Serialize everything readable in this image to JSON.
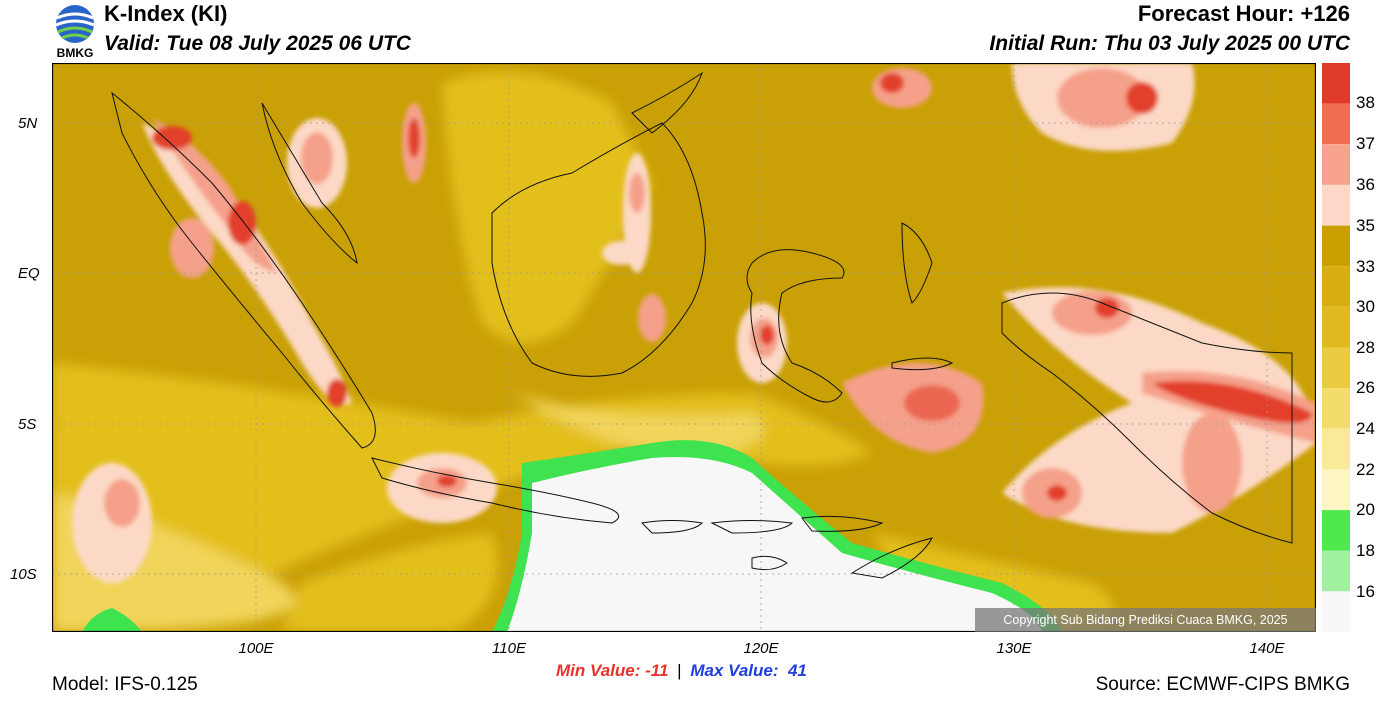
{
  "header": {
    "title": "K-Index (KI)",
    "valid": "Valid: Tue 08 July 2025 06 UTC",
    "forecast_hour": "Forecast Hour: +126",
    "initial_run": "Initial Run: Thu 03 July 2025 00 UTC"
  },
  "logo": {
    "text": "BMKG",
    "icon": "bmkg-logo-icon"
  },
  "axes": {
    "lat_ticks": [
      "5N",
      "EQ",
      "5S",
      "10S"
    ],
    "lon_ticks": [
      "100E",
      "110E",
      "120E",
      "130E",
      "140E"
    ]
  },
  "colorbar": {
    "labels": [
      "38",
      "37",
      "36",
      "35",
      "33",
      "30",
      "28",
      "26",
      "24",
      "22",
      "20",
      "18",
      "16"
    ],
    "colors": [
      "#e03a28",
      "#f06c52",
      "#f8a290",
      "#fdd8c8",
      "#caa000",
      "#d7ad10",
      "#e0bb20",
      "#ebcb40",
      "#f3dc6c",
      "#f8ea98",
      "#fdf6c4",
      "#4fe84f",
      "#a0f0a0",
      "#f7f7f7"
    ]
  },
  "footer": {
    "min_label": "Min Value: -11",
    "separator": "|",
    "max_label": "Max Value:  41",
    "model": "Model: IFS-0.125",
    "source": "Source: ECMWF-CIPS BMKG",
    "copyright": "Copyright Sub Bidang Prediksi Cuaca BMKG, 2025"
  },
  "map_colors": {
    "base": "#c9a005",
    "light": "#e3bf1e",
    "pale": "#f1d45a",
    "peach": "#fcd9c6",
    "salmon": "#f5a08a",
    "red": "#e2402c",
    "green": "#3fe24f",
    "white": "#f7f7f7",
    "coast": "#111111"
  }
}
